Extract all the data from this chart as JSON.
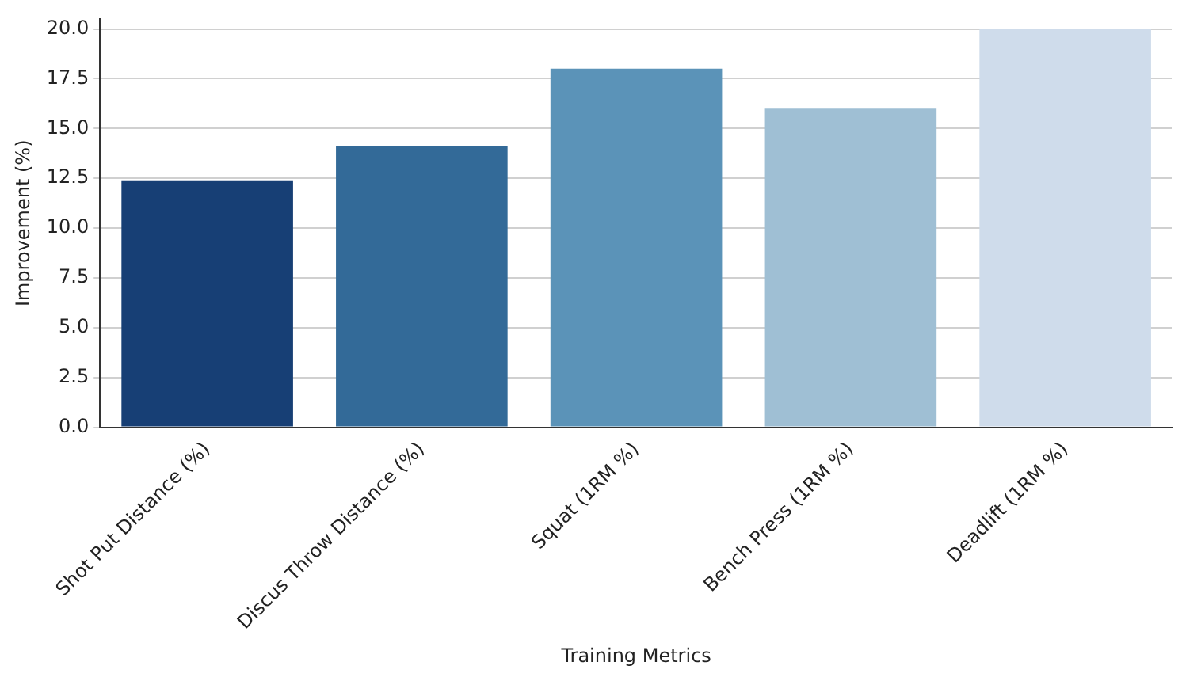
{
  "chart_data": {
    "type": "bar",
    "xlabel": "Training Metrics",
    "ylabel": "Improvement (%)",
    "categories": [
      "Shot Put Distance (%)",
      "Discus Throw Distance (%)",
      "Squat (1RM %)",
      "Bench Press (1RM %)",
      "Deadlift (1RM %)"
    ],
    "values": [
      12.4,
      14.1,
      18.0,
      16.0,
      20.0
    ],
    "colors": [
      "#173f75",
      "#336a98",
      "#5b93b8",
      "#9fbfd4",
      "#cfdceb"
    ],
    "ylim": [
      0,
      20.5
    ],
    "yticks": [
      {
        "value": 0,
        "label": "0.0"
      },
      {
        "value": 2.5,
        "label": "2.5"
      },
      {
        "value": 5,
        "label": "5.0"
      },
      {
        "value": 7.5,
        "label": "7.5"
      },
      {
        "value": 10,
        "label": "10.0"
      },
      {
        "value": 12.5,
        "label": "12.5"
      },
      {
        "value": 15,
        "label": "15.0"
      },
      {
        "value": 17.5,
        "label": "17.5"
      },
      {
        "value": 20,
        "label": "20.0"
      }
    ],
    "grid": "y",
    "legend": false
  }
}
